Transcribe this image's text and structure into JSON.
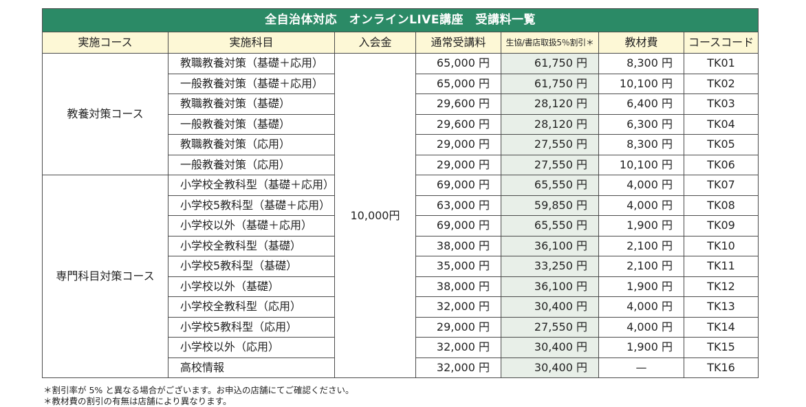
{
  "title": "全自治体対応　オンラインLIVE講座　受講料一覧",
  "headers": {
    "course": "実施コース",
    "subject": "実施科目",
    "entrance": "入会金",
    "regular": "通常受講料",
    "discount": "生協/書店取扱5％割引＊",
    "material": "教材費",
    "code": "コースコード"
  },
  "entrance_fee": "10,000円",
  "groups": {
    "kyoyo": "教養対策コース",
    "senmon": "専門科目対策コース"
  },
  "rows": [
    {
      "subject": "教職教養対策（基礎＋応用）",
      "regular": "65,000 円",
      "discount": "61,750 円",
      "material": "8,300 円",
      "code": "TK01"
    },
    {
      "subject": "一般教養対策（基礎＋応用）",
      "regular": "65,000 円",
      "discount": "61,750 円",
      "material": "10,100 円",
      "code": "TK02"
    },
    {
      "subject": "教職教養対策（基礎）",
      "regular": "29,600 円",
      "discount": "28,120 円",
      "material": "6,400 円",
      "code": "TK03"
    },
    {
      "subject": "一般教養対策（基礎）",
      "regular": "29,600 円",
      "discount": "28,120 円",
      "material": "6,300 円",
      "code": "TK04"
    },
    {
      "subject": "教職教養対策（応用）",
      "regular": "29,000 円",
      "discount": "27,550 円",
      "material": "8,300 円",
      "code": "TK05"
    },
    {
      "subject": "一般教養対策（応用）",
      "regular": "29,000 円",
      "discount": "27,550 円",
      "material": "10,100 円",
      "code": "TK06"
    },
    {
      "subject": "小学校全教科型（基礎＋応用）",
      "regular": "69,000 円",
      "discount": "65,550 円",
      "material": "4,000 円",
      "code": "TK07"
    },
    {
      "subject": "小学校5教科型（基礎＋応用）",
      "regular": "63,000 円",
      "discount": "59,850 円",
      "material": "4,000 円",
      "code": "TK08"
    },
    {
      "subject": "小学校以外（基礎＋応用）",
      "regular": "69,000 円",
      "discount": "65,550 円",
      "material": "1,900 円",
      "code": "TK09"
    },
    {
      "subject": "小学校全教科型（基礎）",
      "regular": "38,000 円",
      "discount": "36,100 円",
      "material": "2,100 円",
      "code": "TK10"
    },
    {
      "subject": "小学校5教科型（基礎）",
      "regular": "35,000 円",
      "discount": "33,250 円",
      "material": "2,100 円",
      "code": "TK11"
    },
    {
      "subject": "小学校以外（基礎）",
      "regular": "38,000 円",
      "discount": "36,100 円",
      "material": "1,900 円",
      "code": "TK12"
    },
    {
      "subject": "小学校全教科型（応用）",
      "regular": "32,000 円",
      "discount": "30,400 円",
      "material": "4,000 円",
      "code": "TK13"
    },
    {
      "subject": "小学校5教科型（応用）",
      "regular": "29,000 円",
      "discount": "27,550 円",
      "material": "4,000 円",
      "code": "TK14"
    },
    {
      "subject": "小学校以外（応用）",
      "regular": "32,000 円",
      "discount": "30,400 円",
      "material": "1,900 円",
      "code": "TK15"
    },
    {
      "subject": "高校情報",
      "regular": "32,000 円",
      "discount": "30,400 円",
      "material": "—",
      "code": "TK16"
    }
  ],
  "notes": [
    "＊割引率が 5% と異なる場合がございます。お申込の店舗にてご確認ください。",
    "＊教材費の割引の有無は店舗により異なります。"
  ],
  "colors": {
    "title_bg": "#2b8a66",
    "header_bg": "#fdf8d6",
    "discount_bg": "#e8efe8",
    "border": "#4a4a4a"
  }
}
